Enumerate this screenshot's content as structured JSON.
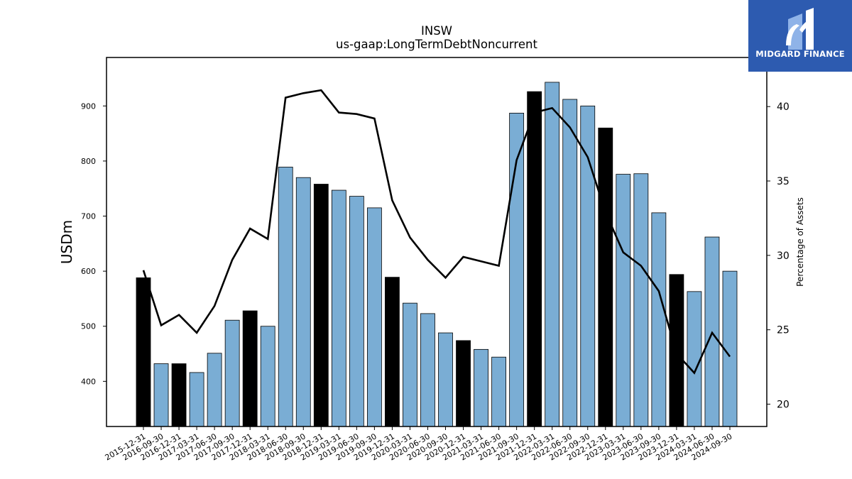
{
  "chart_data": {
    "type": "bar",
    "title": "INSW",
    "subtitle": "us-gaap:LongTermDebtNoncurrent",
    "ylabel": "USDm",
    "y2label": "Percentage of Assets",
    "ylim": [
      318,
      988
    ],
    "y2lim": [
      18.5,
      43.3
    ],
    "yticks": [
      400,
      500,
      600,
      700,
      800,
      900
    ],
    "y2ticks": [
      20,
      25,
      30,
      35,
      40
    ],
    "categories": [
      "2015-12-31",
      "2016-09-30",
      "2016-12-31",
      "2017-03-31",
      "2017-06-30",
      "2017-09-30",
      "2017-12-31",
      "2018-03-31",
      "2018-06-30",
      "2018-09-30",
      "2018-12-31",
      "2019-03-31",
      "2019-06-30",
      "2019-09-30",
      "2019-12-31",
      "2020-03-31",
      "2020-06-30",
      "2020-09-30",
      "2020-12-31",
      "2021-03-31",
      "2021-06-30",
      "2021-09-30",
      "2021-12-31",
      "2022-03-31",
      "2022-06-30",
      "2022-09-30",
      "2022-12-31",
      "2023-03-31",
      "2023-06-30",
      "2023-09-30",
      "2023-12-31",
      "2024-03-31",
      "2024-06-30",
      "2024-09-30"
    ],
    "series": [
      {
        "kind": "bar",
        "values": [
          588,
          432,
          432,
          416,
          451,
          511,
          528,
          500,
          789,
          770,
          758,
          747,
          736,
          715,
          589,
          542,
          523,
          488,
          474,
          458,
          444,
          887,
          926,
          943,
          912,
          900,
          860,
          776,
          777,
          706,
          594,
          563,
          662,
          600
        ],
        "highlight": [
          true,
          false,
          true,
          false,
          false,
          false,
          true,
          false,
          false,
          false,
          true,
          false,
          false,
          false,
          true,
          false,
          false,
          false,
          true,
          false,
          false,
          false,
          true,
          false,
          false,
          false,
          true,
          false,
          false,
          false,
          true,
          false,
          false,
          false
        ],
        "color": "#7aadd4",
        "highlight_color": "#000000"
      },
      {
        "kind": "line",
        "axis": "right",
        "values": [
          29.0,
          25.3,
          26.0,
          24.8,
          26.6,
          29.7,
          31.8,
          31.1,
          40.6,
          40.9,
          41.1,
          39.6,
          39.5,
          39.2,
          33.7,
          31.2,
          29.7,
          28.5,
          29.9,
          29.6,
          29.3,
          36.4,
          39.6,
          39.9,
          38.6,
          36.6,
          32.9,
          30.2,
          29.3,
          27.6,
          23.4,
          22.1,
          24.8,
          23.2
        ],
        "color": "#000000"
      }
    ]
  },
  "logo": {
    "text": "MIDGARD FINANCE",
    "bg": "#2d5bb0"
  }
}
